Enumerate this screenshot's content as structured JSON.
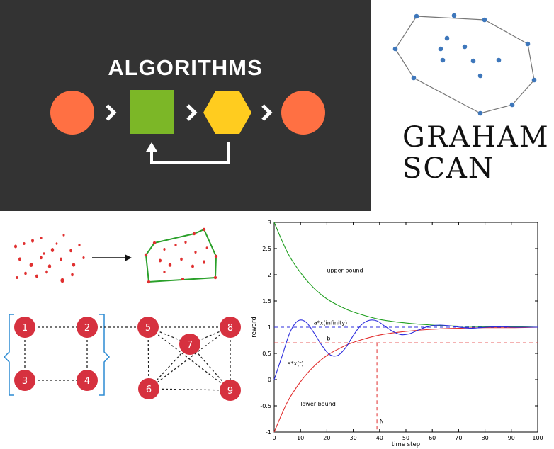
{
  "colors": {
    "background": "#333333",
    "circle": "#ff7043",
    "square": "#7cb727",
    "hexagon": "#ffcc1f",
    "graph_node": "#d6313f",
    "hull_point": "#3e77bb",
    "bracket": "#2d8bd3",
    "curve_upper": "#22a022",
    "curve_lower": "#e23030",
    "curve_ax": "#2c2cdd"
  },
  "algorithms": {
    "title": "ALGORITHMS",
    "icons": [
      "circle-icon",
      "chevron-right-icon",
      "square-icon",
      "chevron-right-icon",
      "hexagon-icon",
      "chevron-right-icon",
      "circle-icon",
      "loop-arrow-icon"
    ]
  },
  "graham": {
    "line1": "GRAHAM",
    "line2": "SCAN"
  },
  "graph": {
    "nodes": [
      "1",
      "2",
      "3",
      "4",
      "5",
      "6",
      "7",
      "8",
      "9"
    ]
  },
  "chart_data": {
    "type": "line",
    "title": "",
    "xlabel": "time step",
    "ylabel": "reward",
    "xlim": [
      0,
      100
    ],
    "ylim": [
      -1,
      3
    ],
    "xticks": [
      0,
      10,
      20,
      30,
      40,
      50,
      60,
      70,
      80,
      90,
      100
    ],
    "yticks": [
      -1,
      -0.5,
      0,
      0.5,
      1,
      1.5,
      2,
      2.5,
      3
    ],
    "grid": false,
    "annotations": [
      {
        "text": "upper bound",
        "x": 20,
        "y": 2.05
      },
      {
        "text": "a*x(infinity)",
        "x": 15,
        "y": 1.05
      },
      {
        "text": "b",
        "x": 20,
        "y": 0.75
      },
      {
        "text": "a*x(t)",
        "x": 5,
        "y": 0.27
      },
      {
        "text": "lower bound",
        "x": 10,
        "y": -0.5
      },
      {
        "text": "N",
        "x": 40,
        "y": -0.83
      }
    ],
    "series": [
      {
        "name": "upper bound",
        "x": [
          0,
          5,
          10,
          15,
          20,
          25,
          30,
          40,
          50,
          60,
          70,
          80,
          90,
          100
        ],
        "values": [
          3.0,
          2.43,
          2.04,
          1.75,
          1.54,
          1.4,
          1.29,
          1.15,
          1.08,
          1.04,
          1.02,
          1.01,
          1.01,
          1.0
        ]
      },
      {
        "name": "lower bound",
        "x": [
          0,
          5,
          10,
          15,
          20,
          25,
          30,
          40,
          50,
          60,
          70,
          80,
          90,
          100
        ],
        "values": [
          -1.0,
          -0.43,
          -0.04,
          0.25,
          0.46,
          0.6,
          0.71,
          0.85,
          0.92,
          0.96,
          0.98,
          0.99,
          0.99,
          1.0
        ]
      },
      {
        "name": "a*x(t)",
        "x": [
          0,
          3,
          6,
          9,
          12,
          15,
          18,
          21,
          24,
          27,
          30,
          33,
          36,
          39,
          42,
          45,
          48,
          51,
          54,
          57,
          60,
          63,
          66,
          69,
          72,
          75,
          78,
          81,
          84,
          87,
          90,
          95,
          100
        ],
        "values": [
          0.0,
          0.45,
          0.9,
          1.12,
          1.1,
          0.9,
          0.66,
          0.48,
          0.46,
          0.6,
          0.84,
          1.04,
          1.13,
          1.12,
          1.02,
          0.92,
          0.86,
          0.87,
          0.93,
          0.99,
          1.03,
          1.04,
          1.03,
          1.01,
          0.99,
          0.98,
          0.99,
          1.0,
          1.01,
          1.01,
          1.0,
          1.0,
          1.0
        ]
      },
      {
        "name": "a*x(infinity)",
        "x": [
          0,
          100
        ],
        "values": [
          1.0,
          1.0
        ]
      },
      {
        "name": "b",
        "x": [
          0,
          100
        ],
        "values": [
          0.7,
          0.7
        ]
      }
    ]
  }
}
